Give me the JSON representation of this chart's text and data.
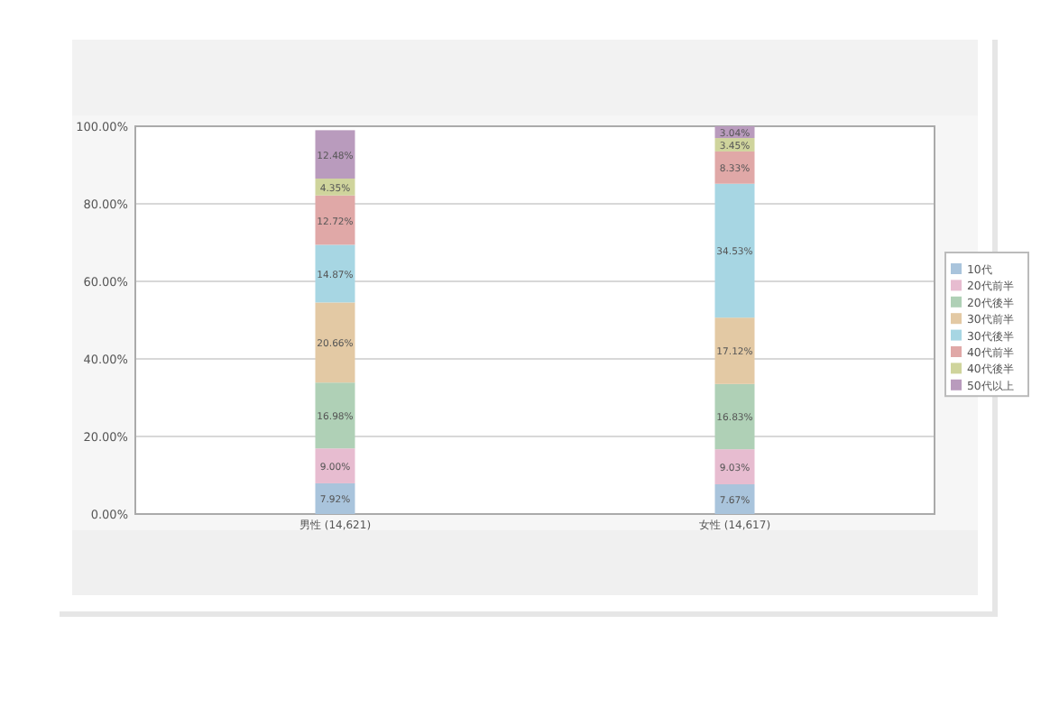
{
  "chart_data": {
    "type": "bar",
    "stacked": true,
    "categories": [
      "男性 (14,621)",
      "女性 (14,617)"
    ],
    "series": [
      {
        "name": "10代",
        "color": "#a9c4dc",
        "values": [
          7.92,
          7.67
        ],
        "value_labels": [
          "7.92%",
          "7.67%"
        ]
      },
      {
        "name": "20代前半",
        "color": "#e7bcd0",
        "values": [
          9.0,
          9.03
        ],
        "value_labels": [
          "9.00%",
          "9.03%"
        ]
      },
      {
        "name": "20代後半",
        "color": "#afd0b6",
        "values": [
          16.98,
          16.83
        ],
        "value_labels": [
          "16.98%",
          "16.83%"
        ]
      },
      {
        "name": "30代前半",
        "color": "#e3c9a4",
        "values": [
          20.66,
          17.12
        ],
        "value_labels": [
          "20.66%",
          "17.12%"
        ]
      },
      {
        "name": "30代後半",
        "color": "#a7d6e3",
        "values": [
          14.87,
          34.53
        ],
        "value_labels": [
          "14.87%",
          "34.53%"
        ]
      },
      {
        "name": "40代前半",
        "color": "#e0a8a7",
        "values": [
          12.72,
          8.33
        ],
        "value_labels": [
          "12.72%",
          "8.33%"
        ]
      },
      {
        "name": "40代後半",
        "color": "#cfd49c",
        "values": [
          4.35,
          3.45
        ],
        "value_labels": [
          "4.35%",
          "3.45%"
        ]
      },
      {
        "name": "50代以上",
        "color": "#b99bbd",
        "values": [
          12.48,
          3.04
        ],
        "value_labels": [
          "12.48%",
          "3.04%"
        ]
      }
    ],
    "ylim": [
      0,
      100
    ],
    "yticks": [
      {
        "value": 0,
        "label": "0.00%"
      },
      {
        "value": 20,
        "label": "20.00%"
      },
      {
        "value": 40,
        "label": "40.00%"
      },
      {
        "value": 60,
        "label": "60.00%"
      },
      {
        "value": 80,
        "label": "80.00%"
      },
      {
        "value": 100,
        "label": "100.00%"
      }
    ],
    "grid": "y",
    "legend": "right"
  }
}
